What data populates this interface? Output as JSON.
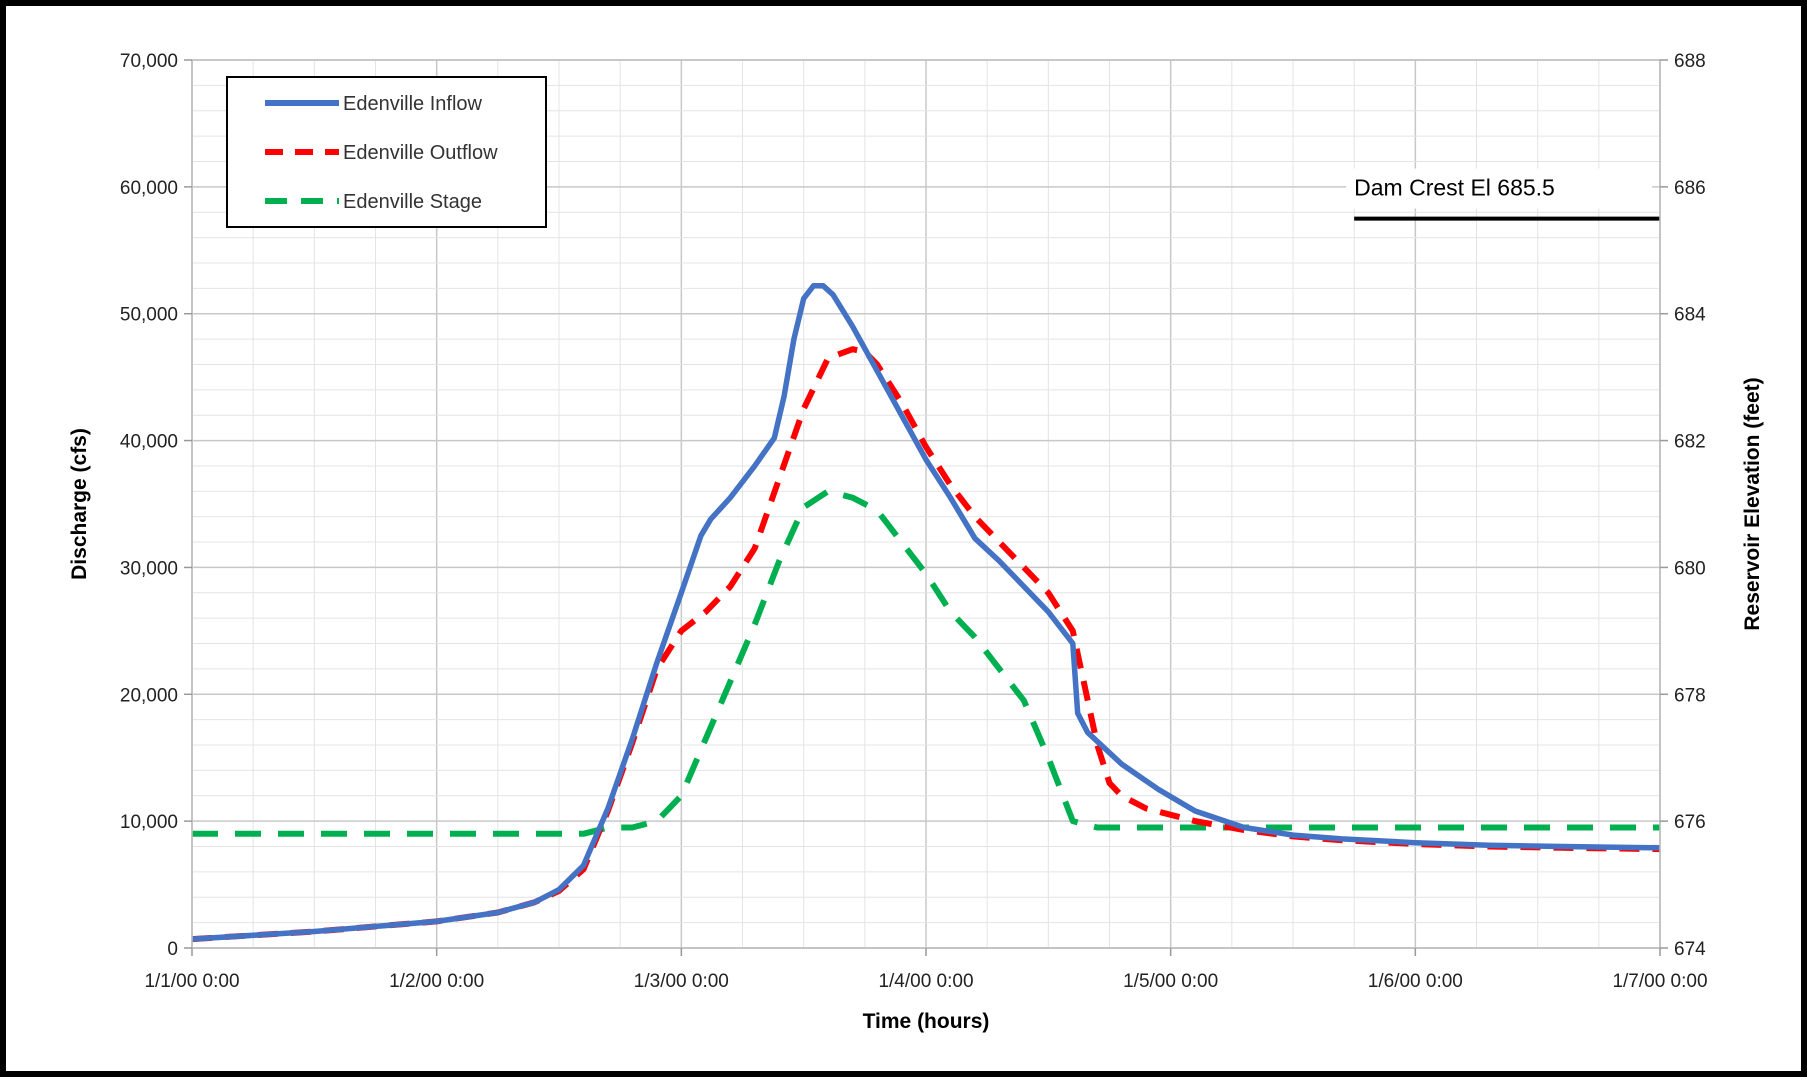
{
  "chart_data": {
    "type": "line",
    "title": "",
    "xlabel": "Time (hours)",
    "ylabel": "Discharge (cfs)",
    "y2label": "Reservoir Elevation (feet)",
    "xlim": [
      0,
      6
    ],
    "ylim": [
      0,
      70000
    ],
    "y2lim": [
      674,
      688
    ],
    "x_ticks": [
      "1/1/00 0:00",
      "1/2/00 0:00",
      "1/3/00 0:00",
      "1/4/00 0:00",
      "1/5/00 0:00",
      "1/6/00 0:00",
      "1/7/00 0:00"
    ],
    "y_ticks": [
      "0",
      "10,000",
      "20,000",
      "30,000",
      "40,000",
      "50,000",
      "60,000",
      "70,000"
    ],
    "y2_ticks": [
      "674",
      "676",
      "678",
      "680",
      "682",
      "684",
      "686",
      "688"
    ],
    "grid": true,
    "legend_position": "top-left",
    "series": [
      {
        "name": "Edenville Inflow",
        "axis": "left",
        "color": "#4472C4",
        "style": "solid",
        "x": [
          0,
          0.5,
          1.0,
          1.25,
          1.4,
          1.5,
          1.6,
          1.7,
          1.8,
          1.9,
          2.0,
          2.08,
          2.12,
          2.2,
          2.3,
          2.38,
          2.42,
          2.46,
          2.5,
          2.54,
          2.58,
          2.62,
          2.7,
          2.8,
          2.9,
          3.0,
          3.1,
          3.2,
          3.3,
          3.4,
          3.5,
          3.6,
          3.62,
          3.66,
          3.8,
          3.95,
          4.1,
          4.3,
          4.5,
          4.7,
          5.0,
          5.3,
          5.6,
          6.0
        ],
        "y": [
          700,
          1300,
          2100,
          2800,
          3600,
          4600,
          6500,
          11000,
          16500,
          22500,
          28000,
          32500,
          33800,
          35500,
          38000,
          40200,
          43500,
          48000,
          51200,
          52200,
          52200,
          51500,
          49000,
          45500,
          42000,
          38500,
          35500,
          32300,
          30500,
          28500,
          26500,
          24000,
          18500,
          17000,
          14500,
          12500,
          10800,
          9500,
          8900,
          8600,
          8300,
          8100,
          8000,
          7900
        ]
      },
      {
        "name": "Edenville Outflow",
        "axis": "left",
        "color": "#FF0000",
        "style": "dashed",
        "x": [
          0,
          0.5,
          1.0,
          1.25,
          1.4,
          1.5,
          1.6,
          1.7,
          1.8,
          1.9,
          2.0,
          2.1,
          2.2,
          2.3,
          2.4,
          2.5,
          2.6,
          2.7,
          2.75,
          2.8,
          2.9,
          3.0,
          3.1,
          3.2,
          3.3,
          3.4,
          3.5,
          3.6,
          3.7,
          3.75,
          3.8,
          3.9,
          4.0,
          4.1,
          4.3,
          4.5,
          4.7,
          5.0,
          5.3,
          5.6,
          6.0
        ],
        "y": [
          700,
          1300,
          2100,
          2800,
          3600,
          4500,
          6200,
          10800,
          16200,
          22000,
          25000,
          26500,
          28500,
          31500,
          37000,
          42500,
          46500,
          47200,
          47000,
          46000,
          43000,
          39500,
          36500,
          34000,
          32000,
          30000,
          28000,
          25000,
          16000,
          13000,
          12000,
          11000,
          10500,
          10000,
          9300,
          8800,
          8500,
          8200,
          8000,
          7900,
          7800
        ]
      },
      {
        "name": "Edenville Stage",
        "axis": "right",
        "color": "#00B050",
        "style": "dashed",
        "x": [
          0,
          0.5,
          1.0,
          1.5,
          1.6,
          1.7,
          1.8,
          1.9,
          2.0,
          2.1,
          2.2,
          2.3,
          2.4,
          2.5,
          2.6,
          2.7,
          2.8,
          2.9,
          3.0,
          3.1,
          3.2,
          3.3,
          3.4,
          3.5,
          3.6,
          3.7,
          3.75,
          3.8,
          3.9,
          4.0,
          4.5,
          5.0,
          5.5,
          6.0
        ],
        "y": [
          675.8,
          675.8,
          675.8,
          675.8,
          675.8,
          675.9,
          675.9,
          676.0,
          676.4,
          677.3,
          678.2,
          679.1,
          680.1,
          680.95,
          681.2,
          681.1,
          680.9,
          680.4,
          679.9,
          679.3,
          678.9,
          678.4,
          677.9,
          677.0,
          676.0,
          675.9,
          675.9,
          675.9,
          675.9,
          675.9,
          675.9,
          675.9,
          675.9,
          675.9
        ]
      }
    ],
    "annotations": [
      {
        "text": "Dam Crest El 685.5",
        "axis": "right",
        "y": 685.5,
        "x_start": 4.75,
        "x_end": 6.0
      }
    ]
  }
}
